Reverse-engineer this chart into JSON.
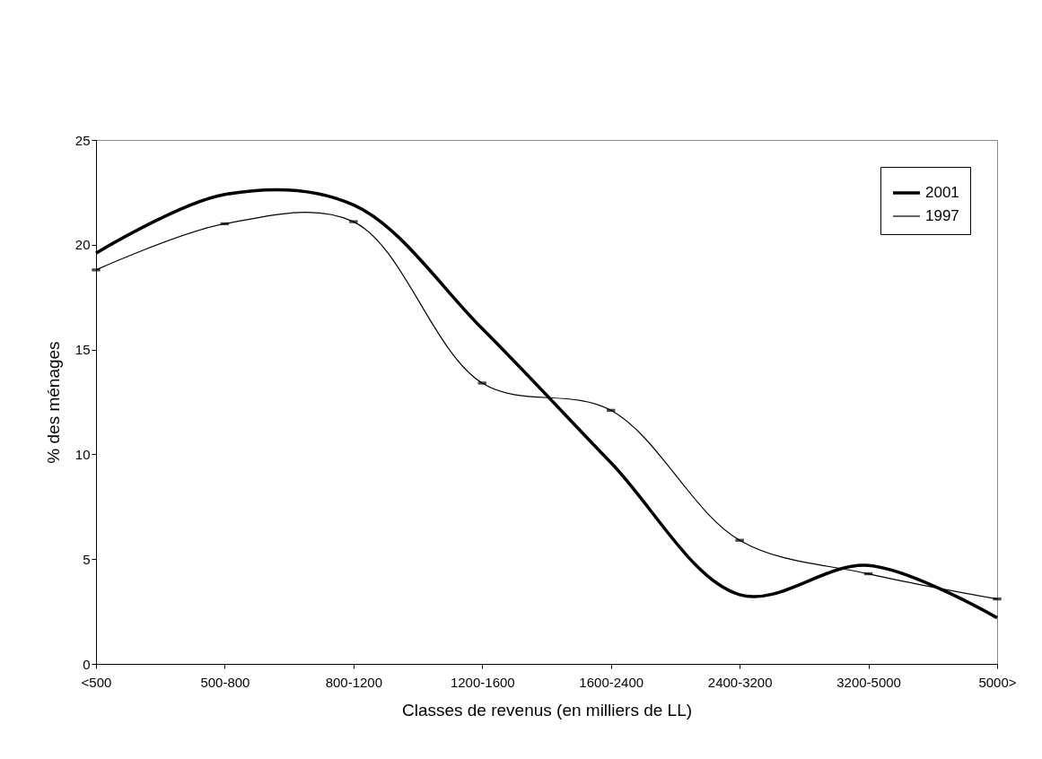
{
  "chart_data": {
    "type": "line",
    "xlabel": "Classes de revenus (en milliers de LL)",
    "ylabel": "% des ménages",
    "categories": [
      "<500",
      "500-800",
      "800-1200",
      "1200-1600",
      "1600-2400",
      "2400-3200",
      "3200-5000",
      "5000>"
    ],
    "series": [
      {
        "name": "2001",
        "color": "#000000",
        "values": [
          19.6,
          22.4,
          21.9,
          16.0,
          9.6,
          3.3,
          4.7,
          2.2
        ]
      },
      {
        "name": "1997",
        "color": "#000000",
        "marker": "square",
        "values": [
          18.8,
          21.0,
          21.1,
          13.4,
          12.1,
          5.9,
          4.3,
          3.1
        ]
      }
    ],
    "ylim": [
      0,
      25
    ],
    "yticks": [
      0,
      5,
      10,
      15,
      20,
      25
    ],
    "grid": false,
    "legend": "top right"
  }
}
